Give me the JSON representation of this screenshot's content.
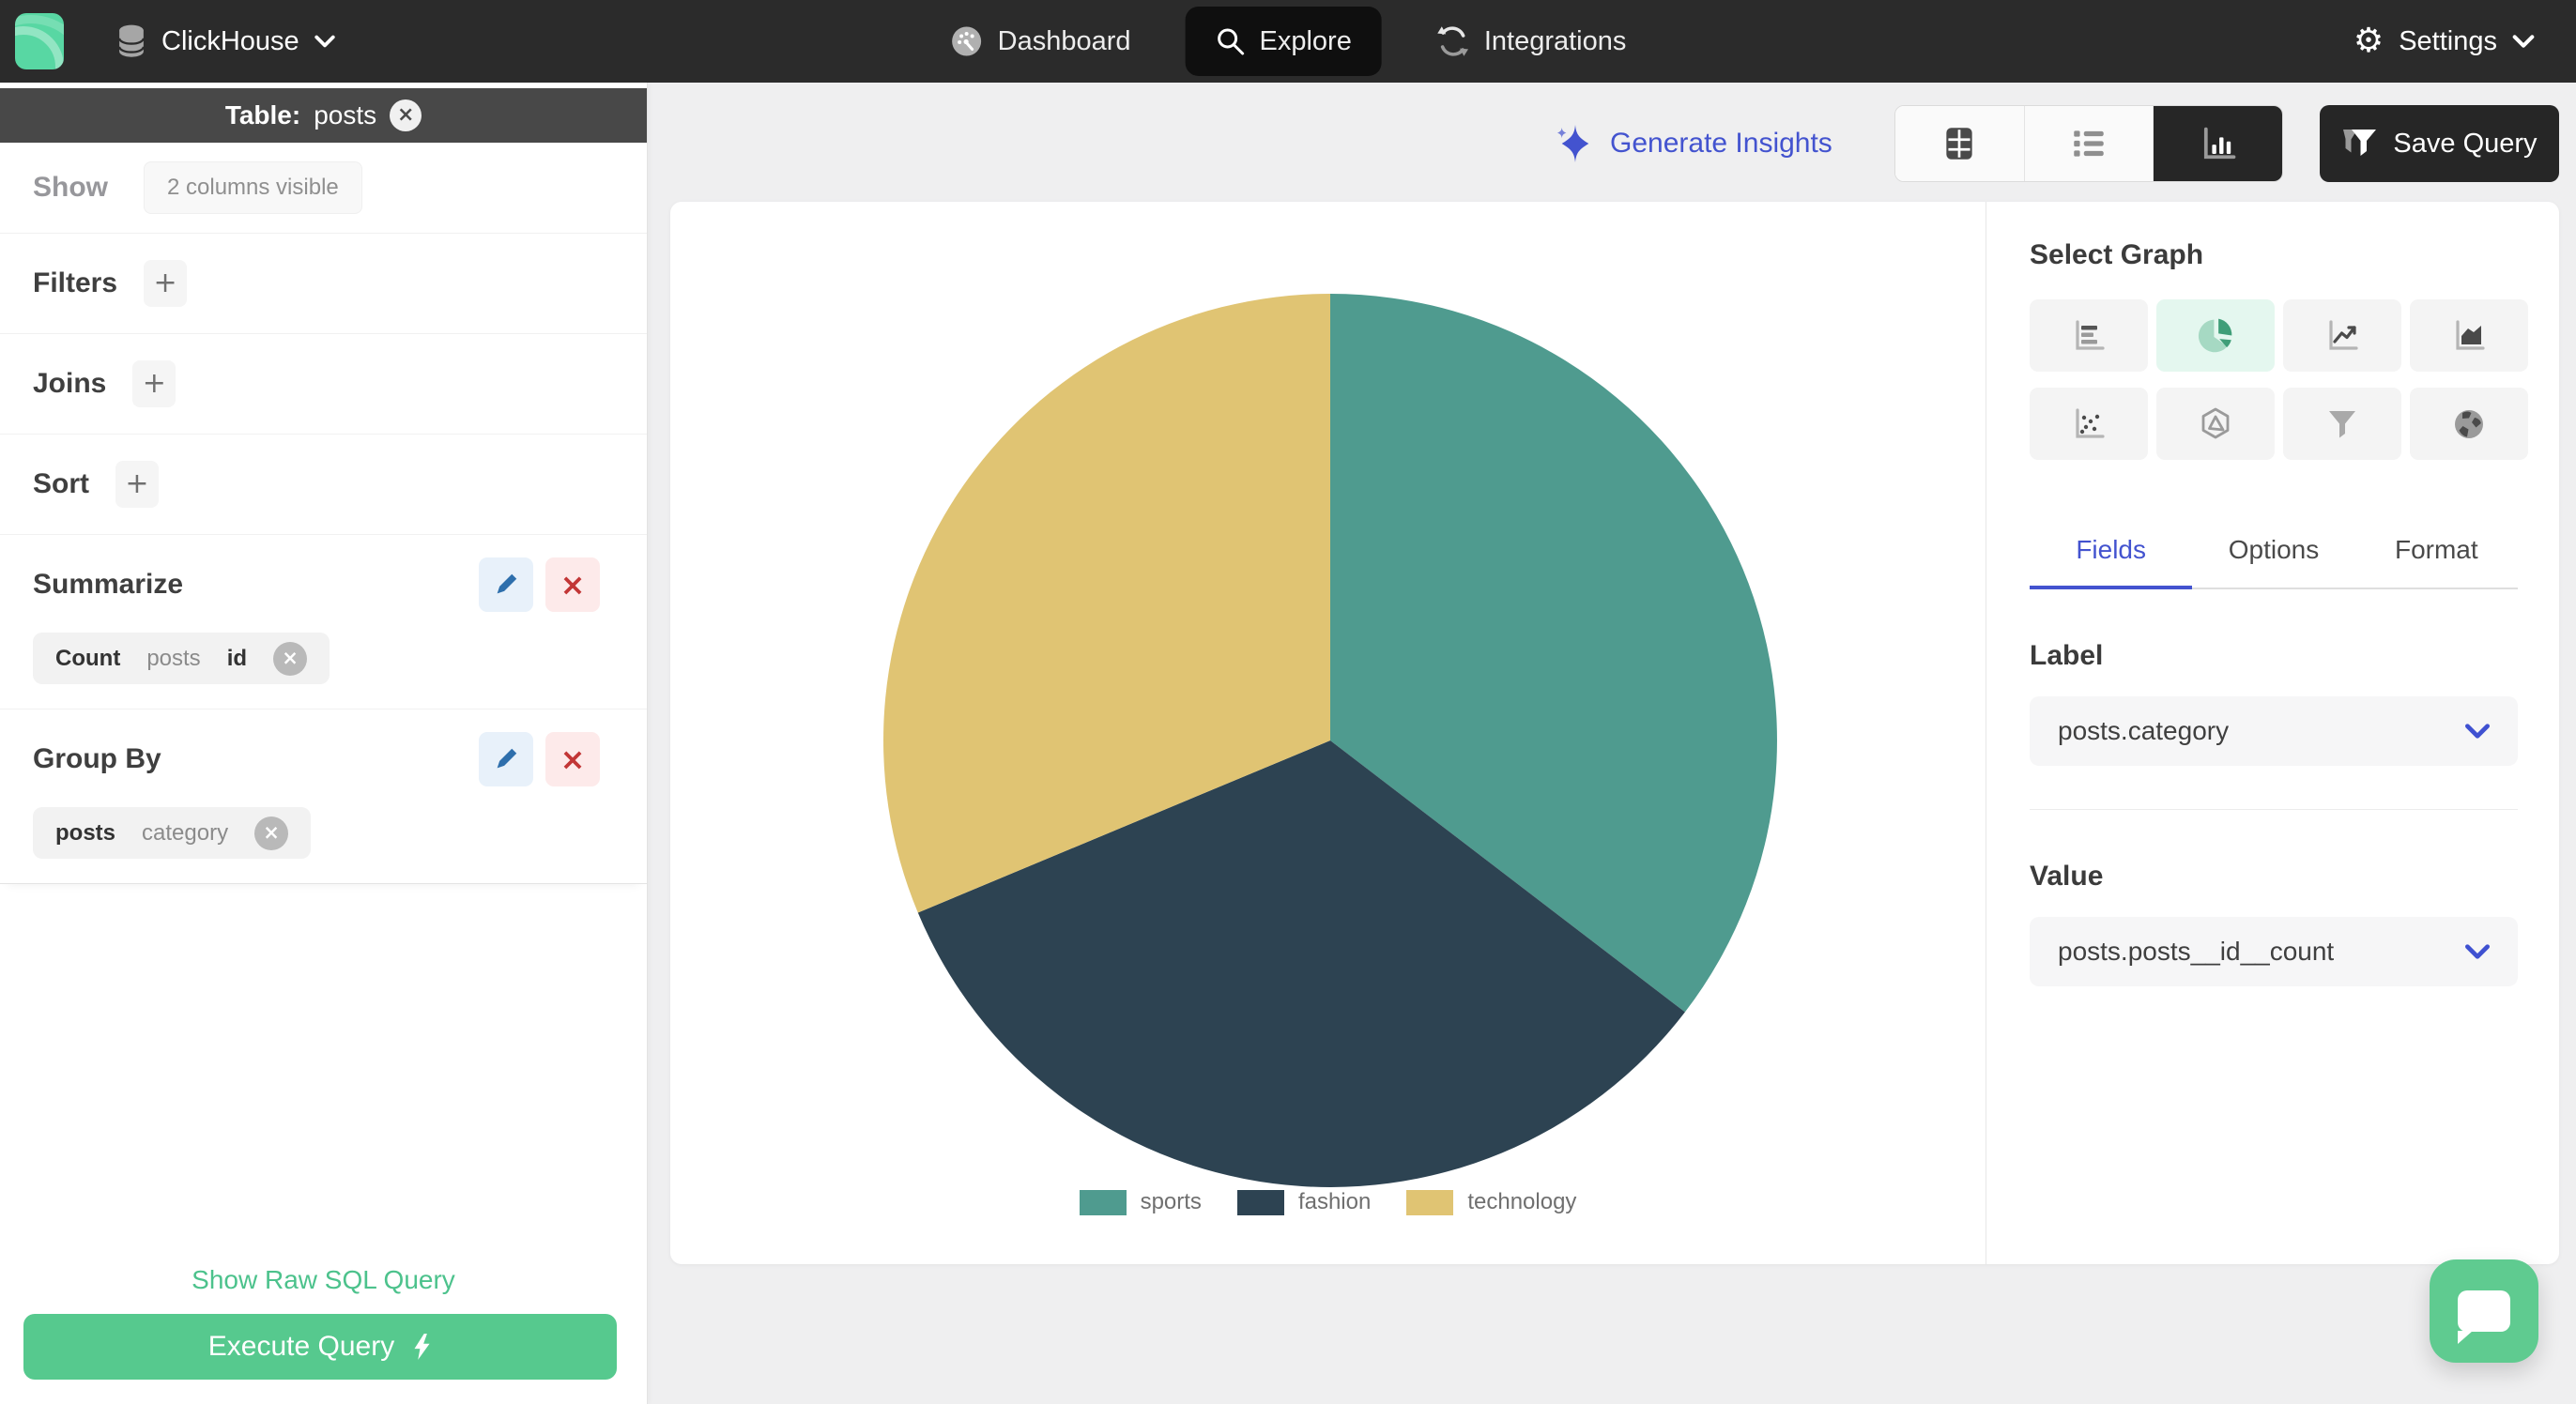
{
  "nav": {
    "brand": "ClickHouse",
    "items": [
      {
        "label": "Dashboard",
        "icon": "gauge-icon",
        "active": false
      },
      {
        "label": "Explore",
        "icon": "search-icon",
        "active": true
      },
      {
        "label": "Integrations",
        "icon": "sync-icon",
        "active": false
      }
    ],
    "settings_label": "Settings"
  },
  "sidebar": {
    "table_header": {
      "prefix": "Table:",
      "name": "posts"
    },
    "show": {
      "label": "Show",
      "badge": "2 columns visible"
    },
    "sections": [
      {
        "label": "Filters"
      },
      {
        "label": "Joins"
      },
      {
        "label": "Sort"
      }
    ],
    "summarize": {
      "label": "Summarize",
      "chip": {
        "agg": "Count",
        "table": "posts",
        "field": "id"
      }
    },
    "group_by": {
      "label": "Group By",
      "chip": {
        "table": "posts",
        "field": "category"
      }
    },
    "raw_sql_link": "Show Raw SQL Query",
    "execute_button": "Execute Query"
  },
  "toolbar": {
    "generate_insights": "Generate Insights",
    "view_modes": [
      "table",
      "list",
      "chart"
    ],
    "active_view": "chart",
    "save_query": "Save Query"
  },
  "graph_panel": {
    "title": "Select Graph",
    "graph_types": [
      "horizontal-bar",
      "pie",
      "line",
      "area",
      "scatter",
      "radar",
      "funnel",
      "map"
    ],
    "active_graph": "pie",
    "tabs": [
      {
        "label": "Fields",
        "active": true
      },
      {
        "label": "Options",
        "active": false
      },
      {
        "label": "Format",
        "active": false
      }
    ],
    "label_field": {
      "heading": "Label",
      "value": "posts.category"
    },
    "value_field": {
      "heading": "Value",
      "value": "posts.posts__id__count"
    }
  },
  "chart_data": {
    "type": "pie",
    "labels": [
      "sports",
      "fashion",
      "technology"
    ],
    "values": [
      35.4,
      33.3,
      31.3
    ],
    "colors": [
      "#4f9b8f",
      "#2d4352",
      "#e0c473"
    ],
    "title": "",
    "legend_position": "bottom",
    "start_angle_deg": -90,
    "note_values": "share estimated from slice angles 127.5/120/112.5 degrees"
  },
  "icons": {
    "plus": "+",
    "close": "×",
    "delete_x": "×",
    "gear": "⚙"
  },
  "colors": {
    "nav_bg": "#2b2b2b",
    "table_bar_bg": "#484848",
    "accent_green": "#56c98e",
    "link_green": "#4cc28c",
    "logo_green": "#58d7a3",
    "accent_blue": "#4353cf",
    "edit_blue": "#2e6fac",
    "delete_red": "#c23636",
    "active_mint": "#e4f7ef",
    "card_bg": "#ffffff",
    "page_bg": "#efeff0"
  }
}
